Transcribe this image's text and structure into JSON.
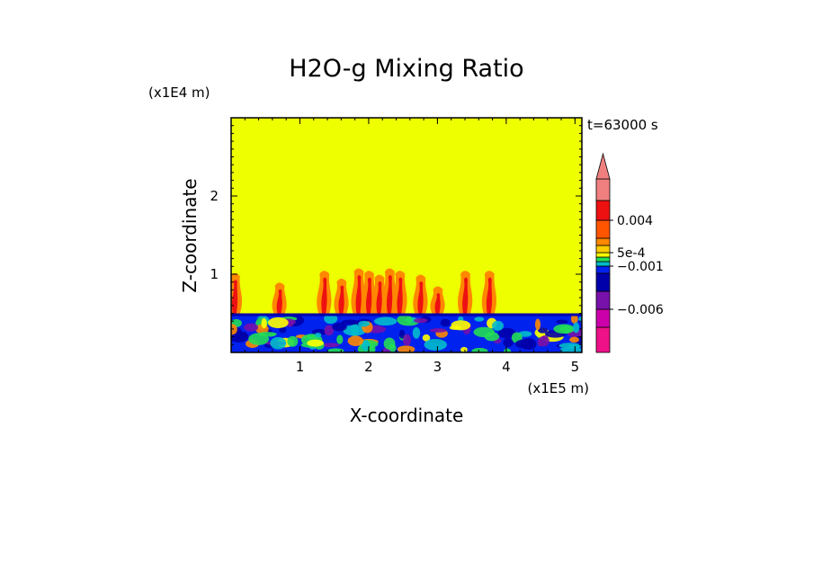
{
  "chart_data": {
    "type": "heatmap",
    "title": "H2O-g Mixing Ratio",
    "xlabel": "X-coordinate",
    "ylabel": "Z-coordinate",
    "x_unit": "(x1E5 m)",
    "y_unit": "(x1E4 m)",
    "time_label": "t=63000 s",
    "xlim": [
      0,
      5.1
    ],
    "ylim": [
      0,
      3.0
    ],
    "x_ticks": [
      1,
      2,
      3,
      4,
      5
    ],
    "y_ticks": [
      1,
      2
    ],
    "boundary_layer_top": 0.5,
    "colorbar": {
      "labels": [
        {
          "text": "0.004",
          "value": 0.004
        },
        {
          "text": "5e-4",
          "value": 0.0005
        },
        {
          "text": "−0.001",
          "value": -0.001
        },
        {
          "text": "−0.006",
          "value": -0.006
        }
      ],
      "levels": [
        {
          "color": "#ee1188",
          "min": null,
          "max": -0.008
        },
        {
          "color": "#cc00aa",
          "min": -0.008,
          "max": -0.006
        },
        {
          "color": "#7711aa",
          "min": -0.006,
          "max": -0.004
        },
        {
          "color": "#0000aa",
          "min": -0.004,
          "max": -0.002
        },
        {
          "color": "#0022ee",
          "min": -0.002,
          "max": -0.001
        },
        {
          "color": "#00bbcc",
          "min": -0.001,
          "max": -0.0005
        },
        {
          "color": "#22dd55",
          "min": -0.0005,
          "max": 0
        },
        {
          "color": "#ffff00",
          "min": 0,
          "max": 0.0005
        },
        {
          "color": "#ffcc00",
          "min": 0.0005,
          "max": 0.001
        },
        {
          "color": "#ff8800",
          "min": 0.001,
          "max": 0.002
        },
        {
          "color": "#ff5500",
          "min": 0.002,
          "max": 0.004
        },
        {
          "color": "#ee1111",
          "min": 0.004,
          "max": 0.006
        },
        {
          "color": "#f08080",
          "min": 0.006,
          "max": null
        }
      ],
      "background_color": "#eeff00"
    },
    "plumes": [
      {
        "x": 0.05,
        "top": 1.02
      },
      {
        "x": 0.7,
        "top": 0.9
      },
      {
        "x": 1.35,
        "top": 1.05
      },
      {
        "x": 1.6,
        "top": 0.95
      },
      {
        "x": 1.85,
        "top": 1.08
      },
      {
        "x": 2.0,
        "top": 1.05
      },
      {
        "x": 2.15,
        "top": 1.0
      },
      {
        "x": 2.3,
        "top": 1.08
      },
      {
        "x": 2.45,
        "top": 1.05
      },
      {
        "x": 2.75,
        "top": 1.0
      },
      {
        "x": 3.0,
        "top": 0.85
      },
      {
        "x": 3.4,
        "top": 1.05
      },
      {
        "x": 3.75,
        "top": 1.05
      }
    ]
  }
}
